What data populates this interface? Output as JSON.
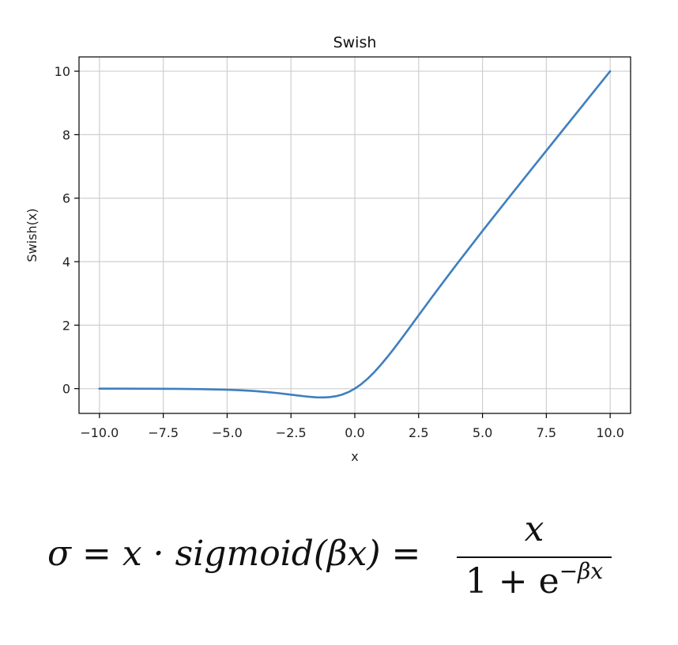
{
  "chart_data": {
    "type": "line",
    "title": "Swish",
    "xlabel": "x",
    "ylabel": "Swish(x)",
    "xlim": [
      -10.8,
      10.8
    ],
    "ylim": [
      -0.78,
      10.45
    ],
    "grid": true,
    "xticks": [
      -10.0,
      -7.5,
      -5.0,
      -2.5,
      0.0,
      2.5,
      5.0,
      7.5,
      10.0
    ],
    "xtick_labels": [
      "−10.0",
      "−7.5",
      "−5.0",
      "−2.5",
      "0.0",
      "2.5",
      "5.0",
      "7.5",
      "10.0"
    ],
    "yticks": [
      0,
      2,
      4,
      6,
      8,
      10
    ],
    "ytick_labels": [
      "0",
      "2",
      "4",
      "6",
      "8",
      "10"
    ],
    "series": [
      {
        "name": "Swish",
        "color": "#3f7fbf",
        "x": [
          -10,
          -9,
          -8,
          -7,
          -6,
          -5,
          -4.5,
          -4,
          -3.5,
          -3,
          -2.5,
          -2,
          -1.75,
          -1.5,
          -1.25,
          -1,
          -0.75,
          -0.5,
          -0.25,
          0,
          0.25,
          0.5,
          0.75,
          1,
          1.25,
          1.5,
          1.75,
          2,
          2.5,
          3,
          3.5,
          4,
          5,
          6,
          7,
          8,
          9,
          10
        ],
        "y": [
          -0.0005,
          -0.0011,
          -0.0027,
          -0.0064,
          -0.0148,
          -0.0335,
          -0.0497,
          -0.0719,
          -0.1033,
          -0.1423,
          -0.1896,
          -0.2384,
          -0.2596,
          -0.2736,
          -0.2781,
          -0.2689,
          -0.2404,
          -0.1888,
          -0.1097,
          0,
          0.1403,
          0.3112,
          0.5096,
          0.7311,
          0.9719,
          1.2264,
          1.4904,
          1.7616,
          2.3104,
          2.8577,
          3.3957,
          3.9281,
          4.9665,
          5.9852,
          6.9936,
          7.9973,
          8.9989,
          9.9995
        ]
      }
    ]
  },
  "formula": {
    "lhs": "σ = x · sigmoid(βx) =",
    "numerator": "x",
    "denominator_base": "1 + e",
    "denominator_exp": "−βx"
  }
}
